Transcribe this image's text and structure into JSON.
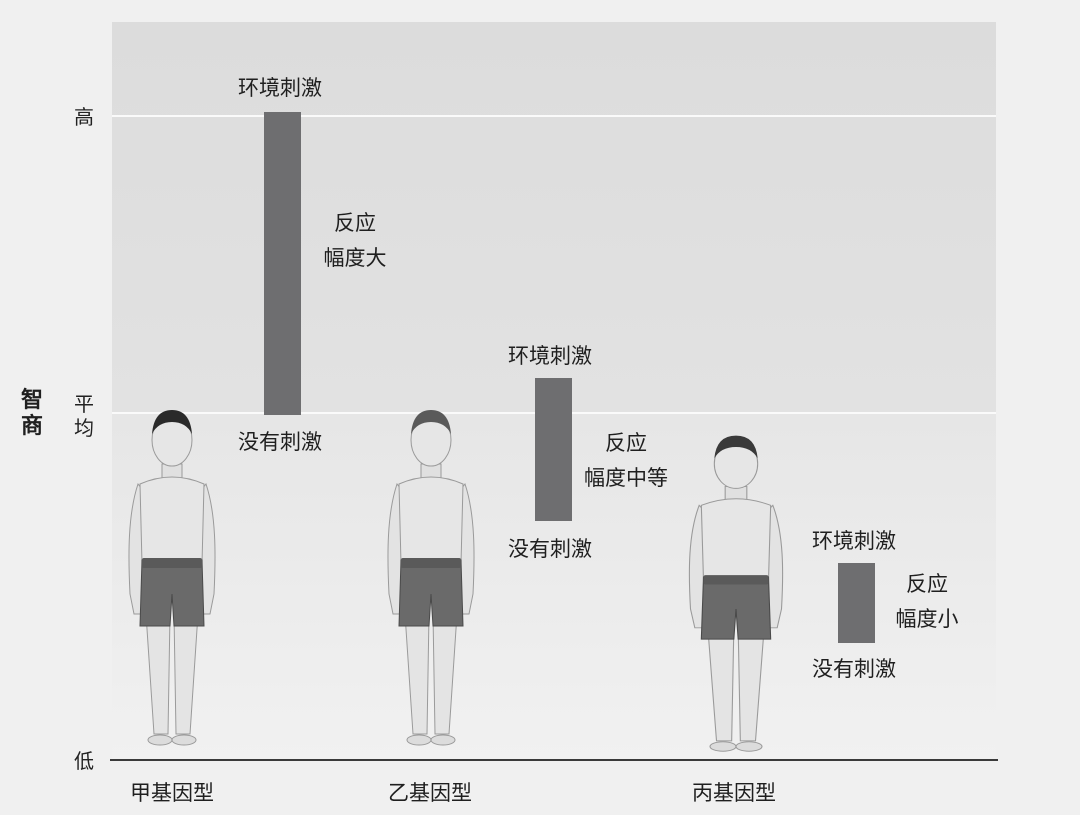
{
  "y_axis": {
    "title": "智商",
    "ticks": {
      "high": "高",
      "average": "平均",
      "low": "低"
    }
  },
  "genotypes": [
    {
      "name": "甲基因型",
      "stimulus_label": "环境刺激",
      "no_stimulus_label": "没有刺激",
      "response_line1": "反应",
      "response_line2": "幅度大",
      "iq_no_stimulus": "average",
      "iq_stimulus": "high"
    },
    {
      "name": "乙基因型",
      "stimulus_label": "环境刺激",
      "no_stimulus_label": "没有刺激",
      "response_line1": "反应",
      "response_line2": "幅度中等"
    },
    {
      "name": "丙基因型",
      "stimulus_label": "环境刺激",
      "no_stimulus_label": "没有刺激",
      "response_line1": "反应",
      "response_line2": "幅度小"
    }
  ],
  "colors": {
    "bar": "#6e6e70",
    "shorts": "#6a6a6a",
    "skin": "#e4e4e4",
    "hair": "#2a2a2a",
    "hair_light": "#5a5a5a"
  }
}
